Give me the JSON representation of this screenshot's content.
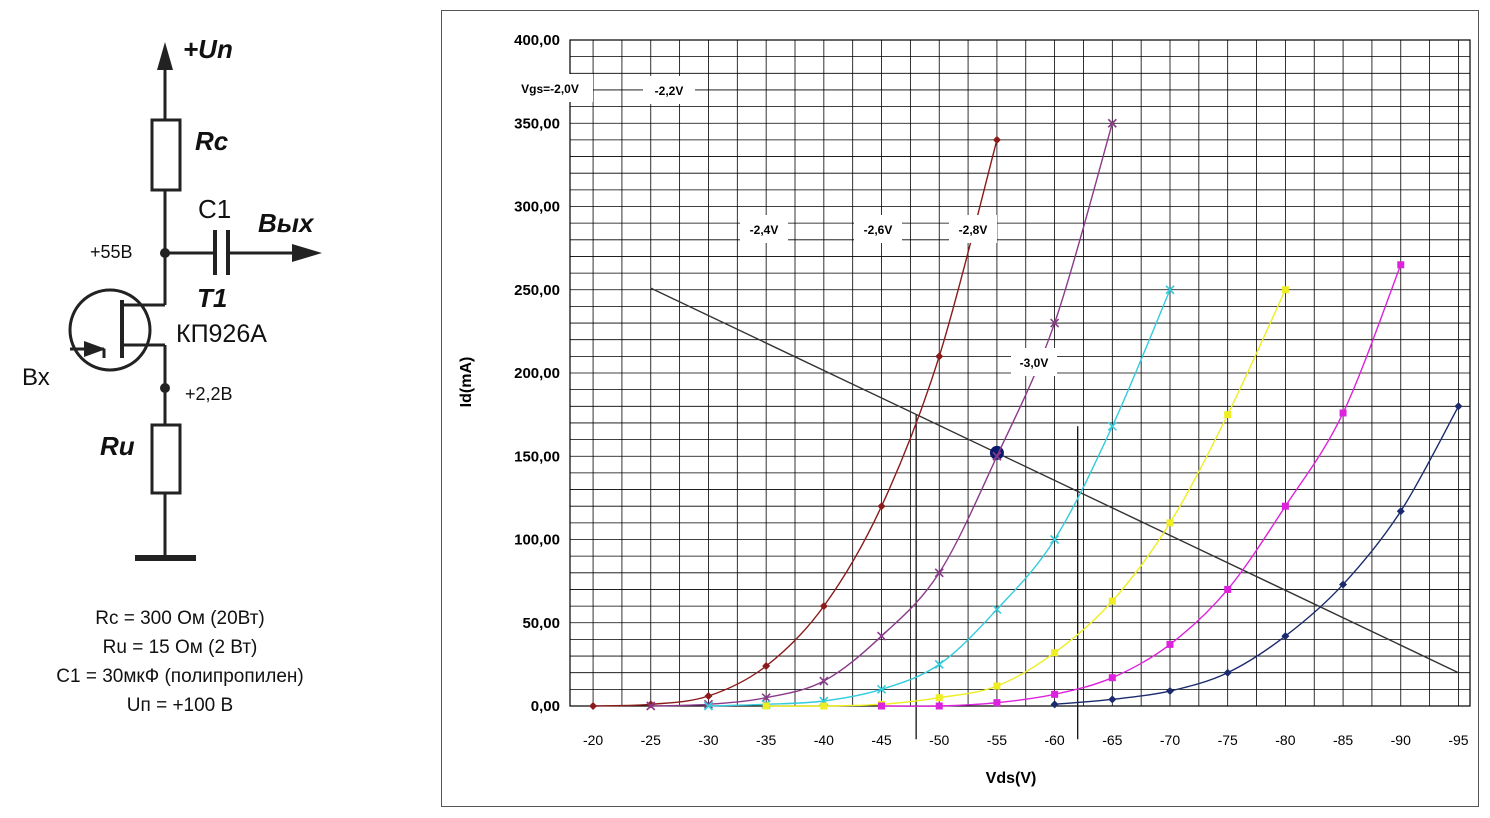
{
  "schematic": {
    "supply_label": "+Un",
    "rc_label": "Rc",
    "c1_label": "C1",
    "out_label": "Вых",
    "drain_voltage": "+55В",
    "transistor_label": "T1",
    "transistor_part": "КП926А",
    "in_label": "Вх",
    "source_voltage": "+2,2В",
    "ru_label": "Ru"
  },
  "notes": [
    "Rc = 300 Ом  (20Вт)",
    "Ru = 15 Ом (2 Вт)",
    "C1 = 30мкФ (полипропилен)",
    "Uп = +100 В"
  ],
  "chart_data": {
    "type": "line",
    "title": "",
    "xlabel": "Vds(V)",
    "ylabel": "Id(mA)",
    "x_ticks": [
      "-20",
      "-25",
      "-30",
      "-35",
      "-40",
      "-45",
      "-50",
      "-55",
      "-60",
      "-65",
      "-70",
      "-75",
      "-80",
      "-85",
      "-90",
      "-95"
    ],
    "y_ticks": [
      "0,00",
      "50,00",
      "100,00",
      "150,00",
      "200,00",
      "250,00",
      "300,00",
      "350,00",
      "400,00"
    ],
    "xlim": [
      -18,
      -96
    ],
    "ylim": [
      0,
      400
    ],
    "grid": true,
    "series": [
      {
        "name": "Vgs=-2,0V",
        "color": "#8b1a1a",
        "marker": "diamond",
        "x": [
          -20,
          -25,
          -30,
          -35,
          -40,
          -45,
          -50,
          -55
        ],
        "y": [
          0,
          1,
          6,
          24,
          60,
          120,
          210,
          340
        ]
      },
      {
        "name": "-2,2V",
        "color": "#8b3a8b",
        "marker": "x",
        "x": [
          -25,
          -30,
          -35,
          -40,
          -45,
          -50,
          -55,
          -60,
          -65
        ],
        "y": [
          0,
          1,
          5,
          15,
          42,
          80,
          150,
          230,
          350
        ]
      },
      {
        "name": "-2,4V",
        "color": "#33ccdd",
        "marker": "x",
        "x": [
          -30,
          -35,
          -40,
          -45,
          -50,
          -55,
          -60,
          -65,
          -70
        ],
        "y": [
          0,
          1,
          3,
          10,
          25,
          58,
          100,
          168,
          250
        ]
      },
      {
        "name": "-2,6V",
        "color": "#eeee22",
        "marker": "square",
        "x": [
          -35,
          -40,
          -45,
          -50,
          -55,
          -60,
          -65,
          -70,
          -75,
          -80
        ],
        "y": [
          0,
          0,
          1,
          5,
          12,
          32,
          63,
          110,
          175,
          250
        ]
      },
      {
        "name": "-2,8V",
        "color": "#dd22dd",
        "marker": "square",
        "x": [
          -45,
          -50,
          -55,
          -60,
          -65,
          -70,
          -75,
          -80,
          -85,
          -90
        ],
        "y": [
          0,
          0,
          2,
          7,
          17,
          37,
          70,
          120,
          176,
          265
        ]
      },
      {
        "name": "-3,0V",
        "color": "#1a2a6c",
        "marker": "diamond",
        "x": [
          -60,
          -65,
          -70,
          -75,
          -80,
          -85,
          -90,
          -95
        ],
        "y": [
          1,
          4,
          9,
          20,
          42,
          73,
          117,
          180
        ]
      }
    ],
    "load_line": {
      "x": [
        -25,
        -95
      ],
      "y": [
        251,
        20
      ],
      "color": "#333333"
    },
    "operating_point": {
      "x": -55,
      "y": 152,
      "color": "#0a1a6c"
    },
    "vertical_lines": [
      {
        "x": -48,
        "y": [
          -20,
          175
        ]
      },
      {
        "x": -62,
        "y": [
          -20,
          168
        ]
      }
    ]
  }
}
